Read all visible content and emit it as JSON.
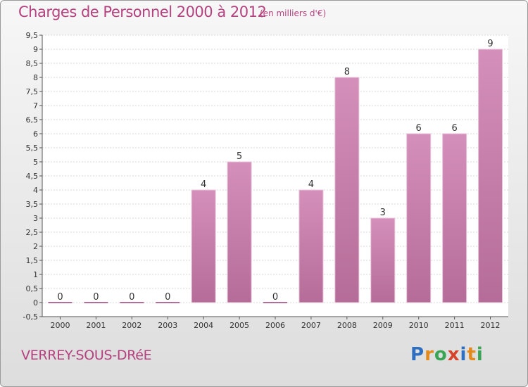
{
  "chart_data": {
    "type": "bar",
    "title": "Charges de Personnel 2000 à 2012",
    "subtitle": "(en milliers d'€)",
    "categories": [
      "2000",
      "2001",
      "2002",
      "2003",
      "2004",
      "2005",
      "2006",
      "2007",
      "2008",
      "2009",
      "2010",
      "2011",
      "2012"
    ],
    "values": [
      0,
      0,
      0,
      0,
      4,
      5,
      0,
      4,
      8,
      3,
      6,
      6,
      9
    ],
    "ylim": [
      -0.5,
      9.5
    ],
    "yticks": [
      "-0,5",
      "0",
      "0,5",
      "1",
      "1,5",
      "2",
      "2,5",
      "3",
      "3,5",
      "4",
      "4,5",
      "5",
      "5,5",
      "6",
      "6,5",
      "7",
      "7,5",
      "8",
      "8,5",
      "9",
      "9,5"
    ],
    "bar_color": "#d48fba",
    "bar_color_dark": "#b56c98"
  },
  "footer": {
    "commune": "VERREY-SOUS-DRéE",
    "logo_letters": [
      "P",
      "r",
      "o",
      "x",
      "i",
      "t",
      "i"
    ]
  }
}
